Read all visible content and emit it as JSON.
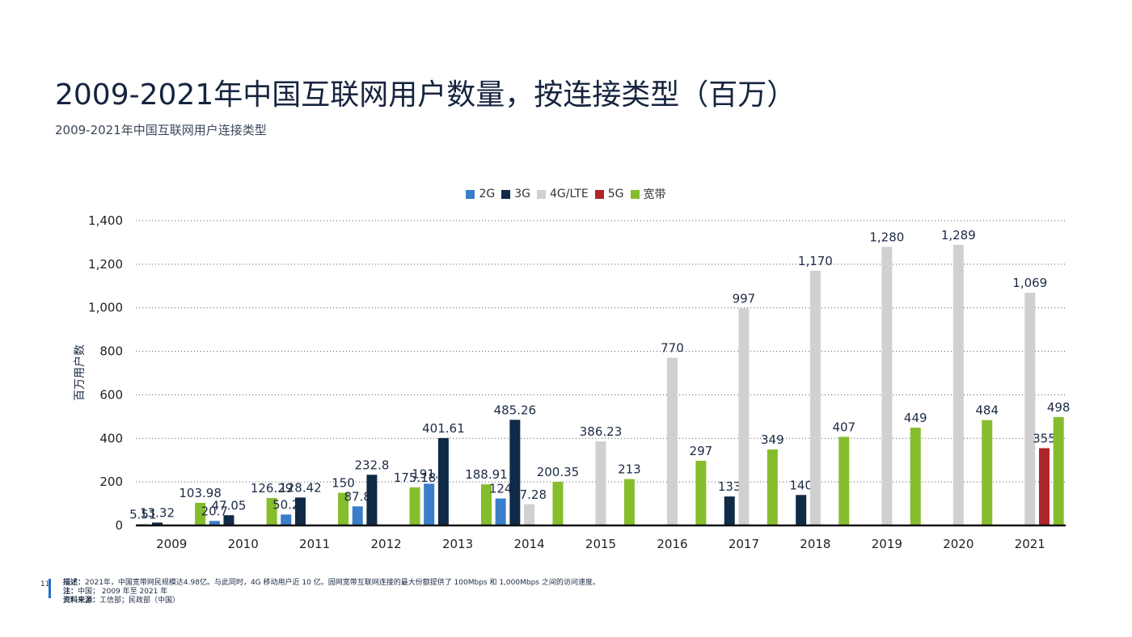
{
  "title": "2009-2021年中国互联网用户数量，按连接类型（百万）",
  "subtitle": "2009-2021年中国互联网用户连接类型",
  "page_number": "11",
  "footer": {
    "desc_label": "描述：",
    "desc_text": "2021年，中国宽带网民规模达4.98亿。与此同时，4G 移动用户近 10 亿。固网宽带互联网连接的最大份额提供了 100Mbps 和 1,000Mbps 之间的访问速度。",
    "note_label": "注：",
    "note_text": "中国；  2009 年至 2021 年",
    "source_label": "资料来源：",
    "source_text": "工信部；民政部（中国）"
  },
  "colors": {
    "2G": "#3a7dc9",
    "3G": "#102a47",
    "4G/LTE": "#d0d0d0",
    "5G": "#b0242b",
    "宽带": "#86bd2c"
  },
  "chart_data": {
    "type": "bar",
    "ylabel": "百万用户数",
    "xlabel": "",
    "ylim": [
      0,
      1400
    ],
    "yticks": [
      0,
      200,
      400,
      600,
      800,
      1000,
      1200,
      1400
    ],
    "ytick_labels": [
      "0",
      "200",
      "400",
      "600",
      "800",
      "1,000",
      "1,200",
      "1,400"
    ],
    "grid": true,
    "legend_position": "top-center",
    "categories": [
      "2009",
      "2010",
      "2011",
      "2012",
      "2013",
      "2014",
      "2015",
      "2016",
      "2017",
      "2018",
      "2019",
      "2020",
      "2021"
    ],
    "series": [
      {
        "name": "2G",
        "values": [
          5.51,
          20.7,
          50.2,
          87.8,
          191.7,
          124,
          null,
          null,
          null,
          null,
          null,
          null,
          null
        ],
        "labels": [
          "5.51",
          "20.7",
          "50.2",
          "87.8",
          "191.7",
          "124",
          "",
          "",
          "",
          "",
          "",
          "",
          ""
        ]
      },
      {
        "name": "3G",
        "values": [
          13.32,
          47.05,
          128.42,
          232.8,
          401.61,
          485.26,
          null,
          null,
          133,
          140,
          null,
          null,
          null
        ],
        "labels": [
          "13.32",
          "47.05",
          "128.42",
          "232.8",
          "401.61",
          "485.26",
          "",
          "",
          "133",
          "140",
          "",
          "",
          ""
        ]
      },
      {
        "name": "4G/LTE",
        "values": [
          null,
          null,
          null,
          null,
          null,
          97.28,
          386.23,
          770,
          997,
          1170,
          1280,
          1289,
          1069
        ],
        "labels": [
          "",
          "",
          "",
          "",
          "",
          "97.28",
          "386.23",
          "770",
          "997",
          "1,170",
          "1,280",
          "1,289",
          "1,069"
        ]
      },
      {
        "name": "5G",
        "values": [
          null,
          null,
          null,
          null,
          null,
          null,
          null,
          null,
          null,
          null,
          null,
          null,
          355
        ],
        "labels": [
          "",
          "",
          "",
          "",
          "",
          "",
          "",
          "",
          "",
          "",
          "",
          "",
          "355"
        ]
      },
      {
        "name": "宽带",
        "values": [
          103.98,
          126.29,
          150,
          175.18,
          188.91,
          200.35,
          213,
          297,
          349,
          407,
          449,
          484,
          498
        ],
        "labels": [
          "103.98",
          "126.29",
          "150",
          "175.18",
          "188.91",
          "200.35",
          "213",
          "297",
          "349",
          "407",
          "449",
          "484",
          "498"
        ]
      }
    ]
  }
}
